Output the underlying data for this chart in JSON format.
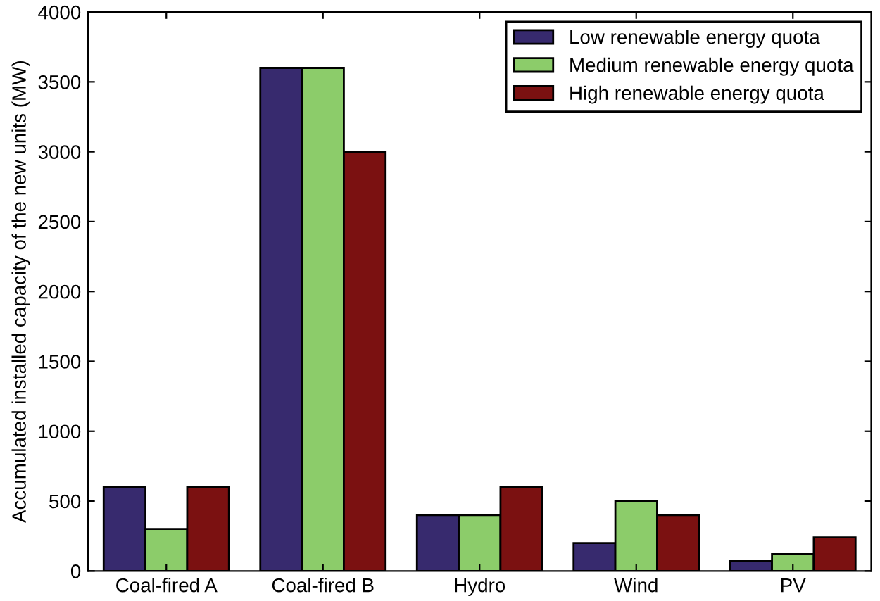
{
  "chart_data": {
    "type": "bar",
    "ylabel": "Accumulated installed capacity of the new units (MW)",
    "categories": [
      "Coal-fired A",
      "Coal-fired B",
      "Hydro",
      "Wind",
      "PV"
    ],
    "series": [
      {
        "name": "Low renewable energy quota",
        "color": "#372a6e",
        "values": [
          600,
          3600,
          400,
          200,
          70
        ]
      },
      {
        "name": "Medium renewable energy quota",
        "color": "#8ccc6a",
        "values": [
          300,
          3600,
          400,
          500,
          120
        ]
      },
      {
        "name": "High renewable energy quota",
        "color": "#7b1111",
        "values": [
          600,
          3000,
          600,
          400,
          240
        ]
      }
    ],
    "ylim": [
      0,
      4000
    ],
    "yticks": [
      0,
      500,
      1000,
      1500,
      2000,
      2500,
      3000,
      3500,
      4000
    ],
    "grid": false,
    "legend": "top right"
  }
}
